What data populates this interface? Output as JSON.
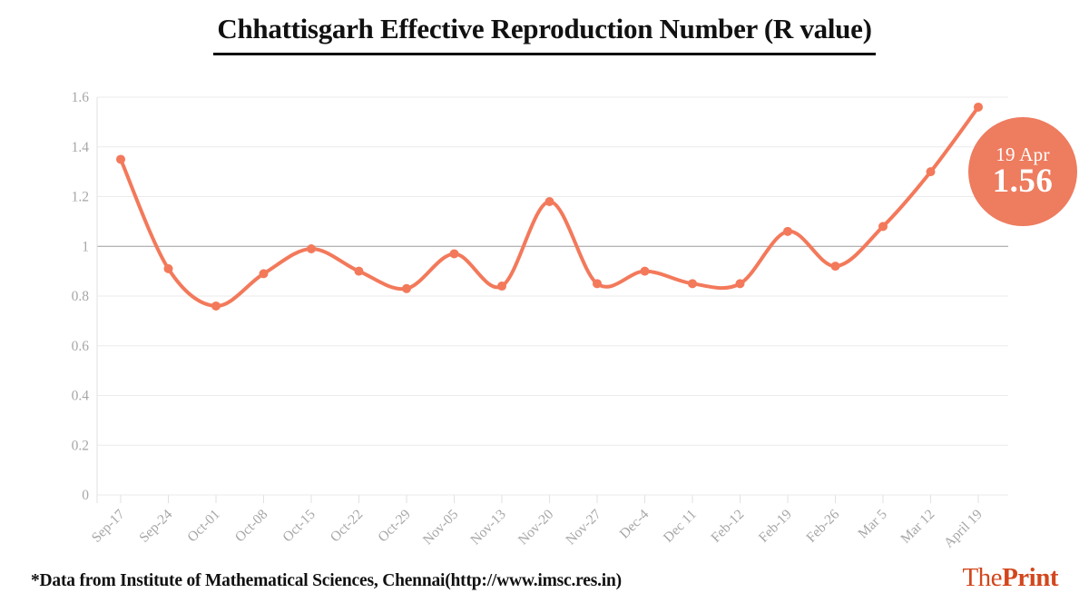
{
  "title": "Chhattisgarh Effective Reproduction Number (R value)",
  "chart_data": {
    "type": "line",
    "categories": [
      "Sep-17",
      "Sep-24",
      "Oct-01",
      "Oct-08",
      "Oct-15",
      "Oct-22",
      "Oct-29",
      "Nov-05",
      "Nov-13",
      "Nov-20",
      "Nov-27",
      "Dec-4",
      "Dec 11",
      "Feb-12",
      "Feb-19",
      "Feb-26",
      "Mar 5",
      "Mar 12",
      "April 19"
    ],
    "values": [
      1.35,
      0.91,
      0.76,
      0.89,
      0.99,
      0.9,
      0.83,
      0.97,
      0.84,
      1.18,
      0.85,
      0.9,
      0.85,
      0.85,
      1.06,
      0.92,
      1.08,
      1.3,
      1.56
    ],
    "title": "Chhattisgarh Effective Reproduction Number (R value)",
    "xlabel": "",
    "ylabel": "",
    "ylim": [
      0,
      1.6
    ],
    "ytick_values": [
      0,
      0.2,
      0.4,
      0.6,
      0.8,
      1,
      1.2,
      1.4,
      1.6
    ],
    "ytick_labels": [
      "0",
      "0.2",
      "0.4",
      "0.6",
      "0.8",
      "1",
      "1.2",
      "1.4",
      "1.6"
    ],
    "reference_line": 1,
    "grid": "horizontal-only",
    "legend": "none",
    "marker": "circle"
  },
  "badge": {
    "date": "19 Apr",
    "value": "1.56"
  },
  "footer": {
    "source_note": "*Data from Institute of Mathematical Sciences, Chennai(http://www.imsc.res.in)"
  },
  "logo": {
    "part1": "The",
    "part2": "Print"
  },
  "colors": {
    "line": "#f3795b",
    "marker": "#f3795b",
    "badge_bg": "#ee7c5f",
    "gridline": "#ebebeb",
    "reference_line": "#9b9b9b",
    "axis": "#e2e2e2",
    "tick_label": "#a6a6a6",
    "title_text": "#111111",
    "badge_text": "#ffffff",
    "logo": "#d2471d"
  }
}
